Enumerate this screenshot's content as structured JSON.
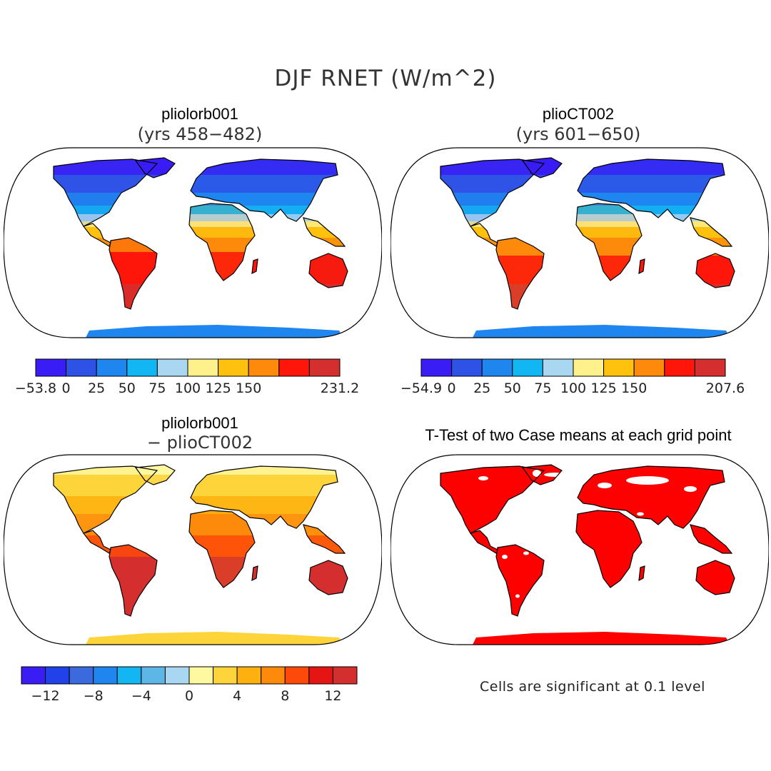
{
  "title": "DJF RNET (W/m^2)",
  "panels": [
    {
      "id": "p1",
      "title": "pliolorb001",
      "subtitle": "(yrs 458−482)",
      "colorbar": {
        "colors": [
          "#3a1cf5",
          "#2f52e6",
          "#1f86f0",
          "#12b6f2",
          "#a9d7f2",
          "#fef08a",
          "#fdc10e",
          "#fd8a0b",
          "#fd1609",
          "#d42f2e"
        ],
        "labels": [
          "−53.8",
          "0",
          "25",
          "50",
          "75",
          "100",
          "125",
          "150",
          "",
          "231.2"
        ]
      }
    },
    {
      "id": "p2",
      "title": "plioCT002",
      "subtitle": "(yrs 601−650)",
      "colorbar": {
        "colors": [
          "#3a1cf5",
          "#2f52e6",
          "#1f86f0",
          "#12b6f2",
          "#a9d7f2",
          "#fef08a",
          "#fdc10e",
          "#fd8a0b",
          "#fd1609",
          "#d42f2e"
        ],
        "labels": [
          "−54.9",
          "0",
          "25",
          "50",
          "75",
          "100",
          "125",
          "150",
          "",
          "207.6"
        ]
      }
    },
    {
      "id": "p3",
      "title": "pliolorb001",
      "subtitle": "− plioCT002",
      "colorbar": {
        "colors": [
          "#3a1cf5",
          "#2142ea",
          "#3b69de",
          "#1f86f0",
          "#12b6f2",
          "#5cb6e6",
          "#a9d7f2",
          "#fef8a0",
          "#fdd43a",
          "#fdb00e",
          "#fd8a0b",
          "#fd4a0a",
          "#e41512",
          "#d42f2e"
        ],
        "labels": [
          "−12",
          "−8",
          "−4",
          "0",
          "4",
          "8",
          "12"
        ]
      }
    },
    {
      "id": "p4",
      "title": "T-Test of two Case means at each grid point",
      "subtitle": "",
      "note": "Cells are significant at 0.1 level"
    }
  ]
}
